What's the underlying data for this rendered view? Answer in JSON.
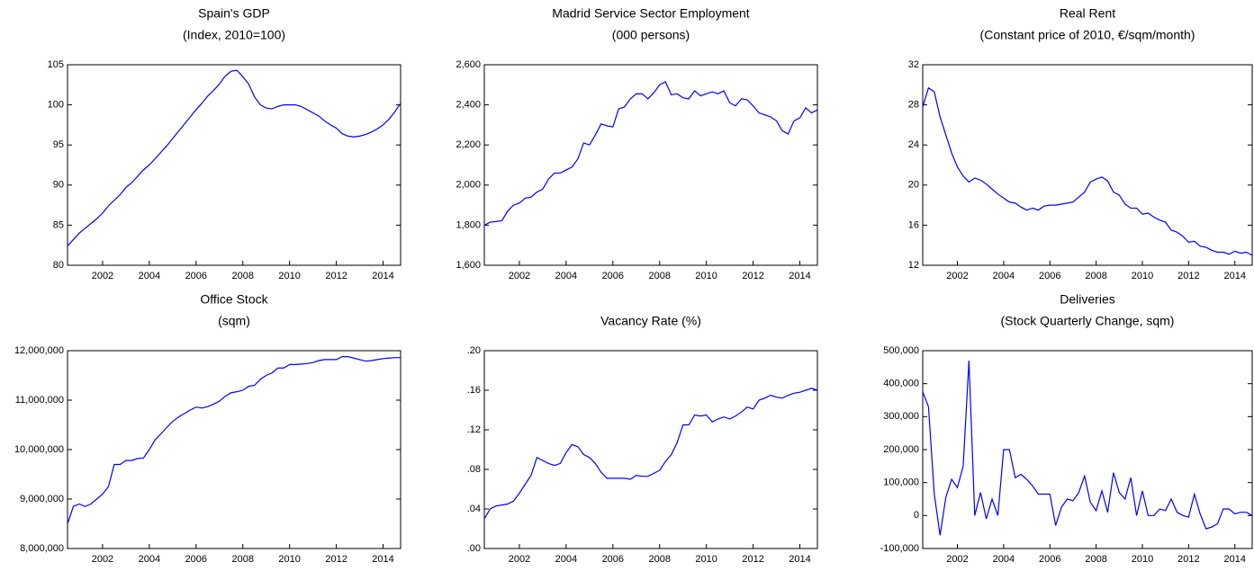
{
  "chart_data": [
    {
      "type": "line",
      "title": "Spain's GDP",
      "subtitle": "(Index, 2010=100)",
      "x": [
        2000.5,
        2000.75,
        2001,
        2001.25,
        2001.5,
        2001.75,
        2002,
        2002.25,
        2002.5,
        2002.75,
        2003,
        2003.25,
        2003.5,
        2003.75,
        2004,
        2004.25,
        2004.5,
        2004.75,
        2005,
        2005.25,
        2005.5,
        2005.75,
        2006,
        2006.25,
        2006.5,
        2006.75,
        2007,
        2007.25,
        2007.5,
        2007.75,
        2008,
        2008.25,
        2008.5,
        2008.75,
        2009,
        2009.25,
        2009.5,
        2009.75,
        2010,
        2010.25,
        2010.5,
        2010.75,
        2011,
        2011.25,
        2011.5,
        2011.75,
        2012,
        2012.25,
        2012.5,
        2012.75,
        2013,
        2013.25,
        2013.5,
        2013.75,
        2014,
        2014.25,
        2014.5,
        2014.75
      ],
      "series": [
        {
          "color": "#0000ff",
          "values": [
            82.4,
            83.2,
            84.0,
            84.6,
            85.2,
            85.8,
            86.5,
            87.4,
            88.1,
            88.8,
            89.7,
            90.3,
            91.1,
            91.9,
            92.5,
            93.3,
            94.1,
            94.9,
            95.8,
            96.7,
            97.6,
            98.5,
            99.4,
            100.2,
            101.1,
            101.8,
            102.6,
            103.6,
            104.2,
            104.3,
            103.5,
            102.6,
            101.0,
            100.0,
            99.6,
            99.5,
            99.8,
            100.0,
            100.0,
            100.0,
            99.8,
            99.4,
            99.0,
            98.6,
            98.0,
            97.5,
            97.1,
            96.4,
            96.1,
            96.0,
            96.1,
            96.3,
            96.6,
            97.0,
            97.5,
            98.2,
            99.1,
            100.2
          ]
        }
      ],
      "xlim": [
        2000.5,
        2014.75
      ],
      "xticks": [
        2002,
        2004,
        2006,
        2008,
        2010,
        2012,
        2014
      ],
      "ylim": [
        80,
        105
      ],
      "yticks": [
        80,
        85,
        90,
        95,
        100,
        105
      ]
    },
    {
      "type": "line",
      "title": "Madrid Service Sector Employment",
      "subtitle": "(000 persons)",
      "x": [
        2000.5,
        2000.75,
        2001,
        2001.25,
        2001.5,
        2001.75,
        2002,
        2002.25,
        2002.5,
        2002.75,
        2003,
        2003.25,
        2003.5,
        2003.75,
        2004,
        2004.25,
        2004.5,
        2004.75,
        2005,
        2005.25,
        2005.5,
        2005.75,
        2006,
        2006.25,
        2006.5,
        2006.75,
        2007,
        2007.25,
        2007.5,
        2007.75,
        2008,
        2008.25,
        2008.5,
        2008.75,
        2009,
        2009.25,
        2009.5,
        2009.75,
        2010,
        2010.25,
        2010.5,
        2010.75,
        2011,
        2011.25,
        2011.5,
        2011.75,
        2012,
        2012.25,
        2012.5,
        2012.75,
        2013,
        2013.25,
        2013.5,
        2013.75,
        2014,
        2014.25,
        2014.5,
        2014.75
      ],
      "series": [
        {
          "color": "#0000ff",
          "values": [
            1800,
            1815,
            1818,
            1822,
            1870,
            1900,
            1910,
            1935,
            1940,
            1965,
            1980,
            2030,
            2060,
            2060,
            2075,
            2090,
            2130,
            2210,
            2200,
            2250,
            2305,
            2295,
            2290,
            2380,
            2390,
            2430,
            2455,
            2455,
            2430,
            2460,
            2500,
            2515,
            2450,
            2455,
            2435,
            2430,
            2470,
            2445,
            2455,
            2465,
            2455,
            2470,
            2410,
            2395,
            2430,
            2425,
            2395,
            2360,
            2350,
            2340,
            2320,
            2270,
            2255,
            2320,
            2335,
            2385,
            2360,
            2375
          ]
        }
      ],
      "xlim": [
        2000.5,
        2014.75
      ],
      "xticks": [
        2002,
        2004,
        2006,
        2008,
        2010,
        2012,
        2014
      ],
      "ylim": [
        1600,
        2600
      ],
      "yticks": [
        {
          "value": 1600,
          "label": "1,600"
        },
        {
          "value": 1800,
          "label": "1,800"
        },
        {
          "value": 2000,
          "label": "2,000"
        },
        {
          "value": 2200,
          "label": "2,200"
        },
        {
          "value": 2400,
          "label": "2,400"
        },
        {
          "value": 2600,
          "label": "2,600"
        }
      ]
    },
    {
      "type": "line",
      "title": "Real Rent",
      "subtitle": "(Constant price of 2010, €/sqm/month)",
      "x": [
        2000.5,
        2000.75,
        2001,
        2001.25,
        2001.5,
        2001.75,
        2002,
        2002.25,
        2002.5,
        2002.75,
        2003,
        2003.25,
        2003.5,
        2003.75,
        2004,
        2004.25,
        2004.5,
        2004.75,
        2005,
        2005.25,
        2005.5,
        2005.75,
        2006,
        2006.25,
        2006.5,
        2006.75,
        2007,
        2007.25,
        2007.5,
        2007.75,
        2008,
        2008.25,
        2008.5,
        2008.75,
        2009,
        2009.25,
        2009.5,
        2009.75,
        2010,
        2010.25,
        2010.5,
        2010.75,
        2011,
        2011.25,
        2011.5,
        2011.75,
        2012,
        2012.25,
        2012.5,
        2012.75,
        2013,
        2013.25,
        2013.5,
        2013.75,
        2014,
        2014.25,
        2014.5,
        2014.75
      ],
      "series": [
        {
          "color": "#0000ff",
          "values": [
            27.8,
            29.7,
            29.3,
            26.8,
            25.0,
            23.2,
            21.8,
            20.9,
            20.3,
            20.7,
            20.5,
            20.1,
            19.6,
            19.1,
            18.7,
            18.3,
            18.2,
            17.8,
            17.5,
            17.7,
            17.5,
            17.9,
            18.0,
            18.0,
            18.1,
            18.2,
            18.3,
            18.8,
            19.3,
            20.3,
            20.6,
            20.8,
            20.4,
            19.3,
            19.0,
            18.1,
            17.7,
            17.7,
            17.1,
            17.2,
            16.8,
            16.5,
            16.3,
            15.5,
            15.3,
            14.9,
            14.3,
            14.4,
            13.9,
            13.8,
            13.5,
            13.3,
            13.3,
            13.1,
            13.4,
            13.2,
            13.3,
            13.0
          ]
        }
      ],
      "xlim": [
        2000.5,
        2014.75
      ],
      "xticks": [
        2002,
        2004,
        2006,
        2008,
        2010,
        2012,
        2014
      ],
      "ylim": [
        12,
        32
      ],
      "yticks": [
        12,
        16,
        20,
        24,
        28,
        32
      ]
    },
    {
      "type": "line",
      "title": "Office Stock",
      "subtitle": "(sqm)",
      "x": [
        2000.5,
        2000.75,
        2001,
        2001.25,
        2001.5,
        2001.75,
        2002,
        2002.25,
        2002.5,
        2002.75,
        2003,
        2003.25,
        2003.5,
        2003.75,
        2004,
        2004.25,
        2004.5,
        2004.75,
        2005,
        2005.25,
        2005.5,
        2005.75,
        2006,
        2006.25,
        2006.5,
        2006.75,
        2007,
        2007.25,
        2007.5,
        2007.75,
        2008,
        2008.25,
        2008.5,
        2008.75,
        2009,
        2009.25,
        2009.5,
        2009.75,
        2010,
        2010.25,
        2010.5,
        2010.75,
        2011,
        2011.25,
        2011.5,
        2011.75,
        2012,
        2012.25,
        2012.5,
        2012.75,
        2013,
        2013.25,
        2013.5,
        2013.75,
        2014,
        2014.25,
        2014.5,
        2014.75
      ],
      "series": [
        {
          "color": "#0000ff",
          "values": [
            8500000,
            8850000,
            8900000,
            8850000,
            8900000,
            9000000,
            9100000,
            9250000,
            9700000,
            9700000,
            9780000,
            9780000,
            9820000,
            9830000,
            10000000,
            10200000,
            10320000,
            10450000,
            10570000,
            10660000,
            10730000,
            10800000,
            10860000,
            10840000,
            10870000,
            10920000,
            10980000,
            11080000,
            11150000,
            11170000,
            11200000,
            11280000,
            11300000,
            11420000,
            11500000,
            11550000,
            11650000,
            11650000,
            11720000,
            11720000,
            11730000,
            11740000,
            11760000,
            11800000,
            11820000,
            11820000,
            11820000,
            11880000,
            11880000,
            11850000,
            11820000,
            11790000,
            11800000,
            11820000,
            11840000,
            11850000,
            11860000,
            11860000
          ]
        }
      ],
      "xlim": [
        2000.5,
        2014.75
      ],
      "xticks": [
        2002,
        2004,
        2006,
        2008,
        2010,
        2012,
        2014
      ],
      "ylim": [
        8000000,
        12000000
      ],
      "yticks": [
        {
          "value": 8000000,
          "label": "8,000,000"
        },
        {
          "value": 9000000,
          "label": "9,000,000"
        },
        {
          "value": 10000000,
          "label": "10,000,000"
        },
        {
          "value": 11000000,
          "label": "11,000,000"
        },
        {
          "value": 12000000,
          "label": "12,000,000"
        }
      ]
    },
    {
      "type": "line",
      "title": "Vacancy Rate (%)",
      "x": [
        2000.5,
        2000.75,
        2001,
        2001.25,
        2001.5,
        2001.75,
        2002,
        2002.25,
        2002.5,
        2002.75,
        2003,
        2003.25,
        2003.5,
        2003.75,
        2004,
        2004.25,
        2004.5,
        2004.75,
        2005,
        2005.25,
        2005.5,
        2005.75,
        2006,
        2006.25,
        2006.5,
        2006.75,
        2007,
        2007.25,
        2007.5,
        2007.75,
        2008,
        2008.25,
        2008.5,
        2008.75,
        2009,
        2009.25,
        2009.5,
        2009.75,
        2010,
        2010.25,
        2010.5,
        2010.75,
        2011,
        2011.25,
        2011.5,
        2011.75,
        2012,
        2012.25,
        2012.5,
        2012.75,
        2013,
        2013.25,
        2013.5,
        2013.75,
        2014,
        2014.25,
        2014.5,
        2014.75
      ],
      "series": [
        {
          "color": "#0000ff",
          "values": [
            0.03,
            0.04,
            0.043,
            0.044,
            0.045,
            0.048,
            0.056,
            0.065,
            0.074,
            0.092,
            0.089,
            0.086,
            0.084,
            0.086,
            0.097,
            0.105,
            0.103,
            0.095,
            0.092,
            0.086,
            0.077,
            0.071,
            0.071,
            0.071,
            0.071,
            0.07,
            0.074,
            0.073,
            0.073,
            0.076,
            0.079,
            0.088,
            0.095,
            0.107,
            0.125,
            0.125,
            0.135,
            0.134,
            0.135,
            0.128,
            0.131,
            0.133,
            0.131,
            0.134,
            0.138,
            0.143,
            0.141,
            0.15,
            0.152,
            0.155,
            0.153,
            0.152,
            0.155,
            0.157,
            0.158,
            0.16,
            0.162,
            0.16
          ]
        }
      ],
      "xlim": [
        2000.5,
        2014.75
      ],
      "xticks": [
        2002,
        2004,
        2006,
        2008,
        2010,
        2012,
        2014
      ],
      "ylim": [
        0,
        0.2
      ],
      "yticks": [
        {
          "value": 0,
          "label": ".00"
        },
        {
          "value": 0.04,
          "label": ".04"
        },
        {
          "value": 0.08,
          "label": ".08"
        },
        {
          "value": 0.12,
          "label": ".12"
        },
        {
          "value": 0.16,
          "label": ".16"
        },
        {
          "value": 0.2,
          "label": ".20"
        }
      ]
    },
    {
      "type": "line",
      "title": "Deliveries",
      "subtitle": "(Stock Quarterly Change, sqm)",
      "x": [
        2000.5,
        2000.75,
        2001,
        2001.25,
        2001.5,
        2001.75,
        2002,
        2002.25,
        2002.5,
        2002.75,
        2003,
        2003.25,
        2003.5,
        2003.75,
        2004,
        2004.25,
        2004.5,
        2004.75,
        2005,
        2005.25,
        2005.5,
        2005.75,
        2006,
        2006.25,
        2006.5,
        2006.75,
        2007,
        2007.25,
        2007.5,
        2007.75,
        2008,
        2008.25,
        2008.5,
        2008.75,
        2009,
        2009.25,
        2009.5,
        2009.75,
        2010,
        2010.25,
        2010.5,
        2010.75,
        2011,
        2011.25,
        2011.5,
        2011.75,
        2012,
        2012.25,
        2012.5,
        2012.75,
        2013,
        2013.25,
        2013.5,
        2013.75,
        2014,
        2014.25,
        2014.5,
        2014.75
      ],
      "series": [
        {
          "color": "#0000ff",
          "values": [
            375000,
            330000,
            65000,
            -60000,
            55000,
            110000,
            85000,
            150000,
            470000,
            0,
            70000,
            -10000,
            50000,
            0,
            200000,
            200000,
            115000,
            125000,
            110000,
            90000,
            65000,
            65000,
            65000,
            -30000,
            25000,
            50000,
            45000,
            70000,
            120000,
            40000,
            15000,
            75000,
            10000,
            130000,
            70000,
            50000,
            115000,
            0,
            75000,
            0,
            0,
            20000,
            15000,
            50000,
            10000,
            0,
            -5000,
            65000,
            5000,
            -40000,
            -35000,
            -25000,
            20000,
            20000,
            5000,
            10000,
            10000,
            0
          ]
        }
      ],
      "xlim": [
        2000.5,
        2014.75
      ],
      "xticks": [
        2002,
        2004,
        2006,
        2008,
        2010,
        2012,
        2014
      ],
      "ylim": [
        -100000,
        500000
      ],
      "yticks": [
        {
          "value": -100000,
          "label": "-100,000"
        },
        {
          "value": 0,
          "label": "0"
        },
        {
          "value": 100000,
          "label": "100,000"
        },
        {
          "value": 200000,
          "label": "200,000"
        },
        {
          "value": 300000,
          "label": "300,000"
        },
        {
          "value": 400000,
          "label": "400,000"
        },
        {
          "value": 500000,
          "label": "500,000"
        }
      ]
    }
  ]
}
